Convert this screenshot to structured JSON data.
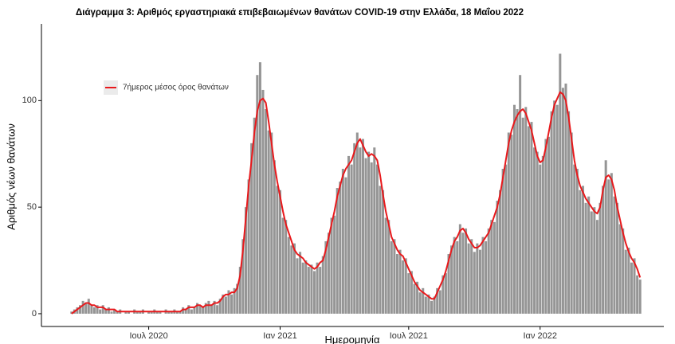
{
  "chart_data": {
    "type": "bar",
    "title": "Διάγραμμα 3: Αριθμός εργαστηριακά επιβεβαιωμένων θανάτων COVID-19 στην Ελλάδα, 18 Μαΐου 2022",
    "y_label": "Αριθμός νέων θανάτων",
    "x_label": "Ημερομηνία",
    "legend_position": "top-left",
    "ylim": [
      -6,
      136
    ],
    "yticks": [
      0,
      50,
      100
    ],
    "categories": [
      null,
      null,
      null,
      null,
      null,
      null,
      null,
      null,
      null,
      null,
      null,
      null,
      null,
      null,
      null,
      null,
      null,
      null,
      null,
      null,
      null,
      null,
      null,
      null,
      null,
      null,
      null,
      "Ιουλ 2020",
      null,
      null,
      null,
      null,
      null,
      null,
      null,
      null,
      null,
      null,
      null,
      null,
      null,
      null,
      null,
      null,
      null,
      null,
      null,
      null,
      null,
      null,
      null,
      null,
      null,
      null,
      null,
      null,
      null,
      null,
      null,
      null,
      null,
      null,
      null,
      null,
      null,
      null,
      null,
      null,
      null,
      null,
      null,
      null,
      null,
      "Ιαν 2021",
      null,
      null,
      null,
      null,
      null,
      null,
      null,
      null,
      null,
      null,
      null,
      null,
      null,
      null,
      null,
      null,
      null,
      null,
      null,
      null,
      null,
      null,
      null,
      null,
      null,
      null,
      null,
      null,
      null,
      null,
      null,
      null,
      null,
      null,
      null,
      null,
      null,
      null,
      null,
      null,
      null,
      null,
      null,
      null,
      "Ιουλ 2021",
      null,
      null,
      null,
      null,
      null,
      null,
      null,
      null,
      null,
      null,
      null,
      null,
      null,
      null,
      null,
      null,
      null,
      null,
      null,
      null,
      null,
      null,
      null,
      null,
      null,
      null,
      null,
      null,
      null,
      null,
      null,
      null,
      null,
      null,
      null,
      null,
      null,
      null,
      null,
      null,
      null,
      null,
      null,
      null,
      null,
      "Ιαν 2022",
      null,
      null,
      null,
      null,
      null,
      null,
      null,
      null,
      null,
      null,
      null,
      null,
      null,
      null,
      null,
      null,
      null,
      null,
      null,
      null,
      null,
      null,
      null,
      null,
      null,
      null,
      null,
      null,
      null,
      null,
      null,
      null,
      null,
      null,
      null
    ],
    "series": [
      {
        "type": "bar",
        "color": "#8a8a8a",
        "values": [
          1,
          2,
          3,
          4,
          6,
          5,
          7,
          4,
          3,
          4,
          2,
          4,
          2,
          3,
          1,
          2,
          1,
          2,
          0,
          1,
          1,
          0,
          2,
          1,
          1,
          2,
          0,
          1,
          1,
          2,
          1,
          1,
          0,
          2,
          1,
          1,
          2,
          1,
          1,
          3,
          2,
          4,
          2,
          3,
          5,
          4,
          3,
          5,
          6,
          4,
          6,
          4,
          7,
          9,
          8,
          11,
          9,
          12,
          14,
          22,
          35,
          50,
          63,
          80,
          92,
          112,
          118,
          105,
          96,
          86,
          85,
          72,
          60,
          58,
          45,
          44,
          36,
          32,
          33,
          26,
          29,
          24,
          25,
          22,
          23,
          20,
          24,
          22,
          27,
          34,
          38,
          45,
          46,
          59,
          62,
          68,
          64,
          74,
          70,
          80,
          85,
          78,
          82,
          73,
          76,
          71,
          78,
          70,
          60,
          58,
          45,
          44,
          34,
          35,
          28,
          30,
          25,
          26,
          19,
          20,
          14,
          15,
          10,
          12,
          8,
          9,
          6,
          8,
          12,
          11,
          18,
          19,
          28,
          32,
          36,
          34,
          42,
          38,
          40,
          33,
          35,
          29,
          33,
          30,
          36,
          34,
          40,
          44,
          43,
          53,
          58,
          68,
          70,
          85,
          84,
          98,
          96,
          112,
          92,
          97,
          88,
          90,
          78,
          76,
          70,
          74,
          82,
          83,
          95,
          100,
          98,
          122,
          106,
          108,
          95,
          85,
          70,
          68,
          58,
          60,
          52,
          55,
          48,
          50,
          44,
          52,
          60,
          72,
          63,
          66,
          55,
          52,
          42,
          40,
          30,
          31,
          24,
          26,
          18,
          16
        ]
      },
      {
        "type": "line",
        "name": "7ήμερος μέσος όρος θανάτων",
        "color": "#e8191c",
        "values": [
          0,
          1,
          2,
          3,
          4,
          5,
          5,
          4,
          4,
          3,
          3,
          3,
          2,
          2,
          2,
          2,
          1,
          1,
          1,
          1,
          1,
          1,
          1,
          1,
          1,
          1,
          1,
          1,
          1,
          1,
          1,
          1,
          1,
          1,
          1,
          1,
          1,
          1,
          1,
          2,
          2,
          3,
          3,
          3,
          4,
          4,
          3,
          4,
          4,
          4,
          5,
          5,
          6,
          8,
          9,
          9,
          10,
          10,
          12,
          18,
          30,
          45,
          60,
          72,
          85,
          95,
          100,
          101,
          99,
          90,
          80,
          70,
          62,
          55,
          48,
          42,
          38,
          34,
          30,
          28,
          27,
          26,
          24,
          23,
          22,
          21,
          22,
          24,
          25,
          30,
          36,
          42,
          48,
          55,
          60,
          65,
          68,
          70,
          72,
          76,
          80,
          82,
          79,
          76,
          74,
          75,
          74,
          72,
          65,
          56,
          48,
          42,
          36,
          33,
          30,
          28,
          27,
          24,
          21,
          18,
          15,
          13,
          11,
          10,
          9,
          8,
          7,
          7,
          10,
          13,
          16,
          20,
          25,
          30,
          34,
          36,
          39,
          40,
          38,
          35,
          33,
          31,
          31,
          32,
          34,
          36,
          38,
          42,
          46,
          50,
          56,
          64,
          72,
          80,
          86,
          90,
          93,
          95,
          96,
          94,
          90,
          86,
          80,
          74,
          71,
          72,
          78,
          85,
          92,
          98,
          101,
          104,
          103,
          100,
          92,
          82,
          72,
          65,
          60,
          57,
          54,
          52,
          50,
          48,
          47,
          50,
          58,
          64,
          65,
          63,
          58,
          50,
          44,
          38,
          33,
          29,
          26,
          24,
          21,
          17
        ]
      }
    ]
  }
}
